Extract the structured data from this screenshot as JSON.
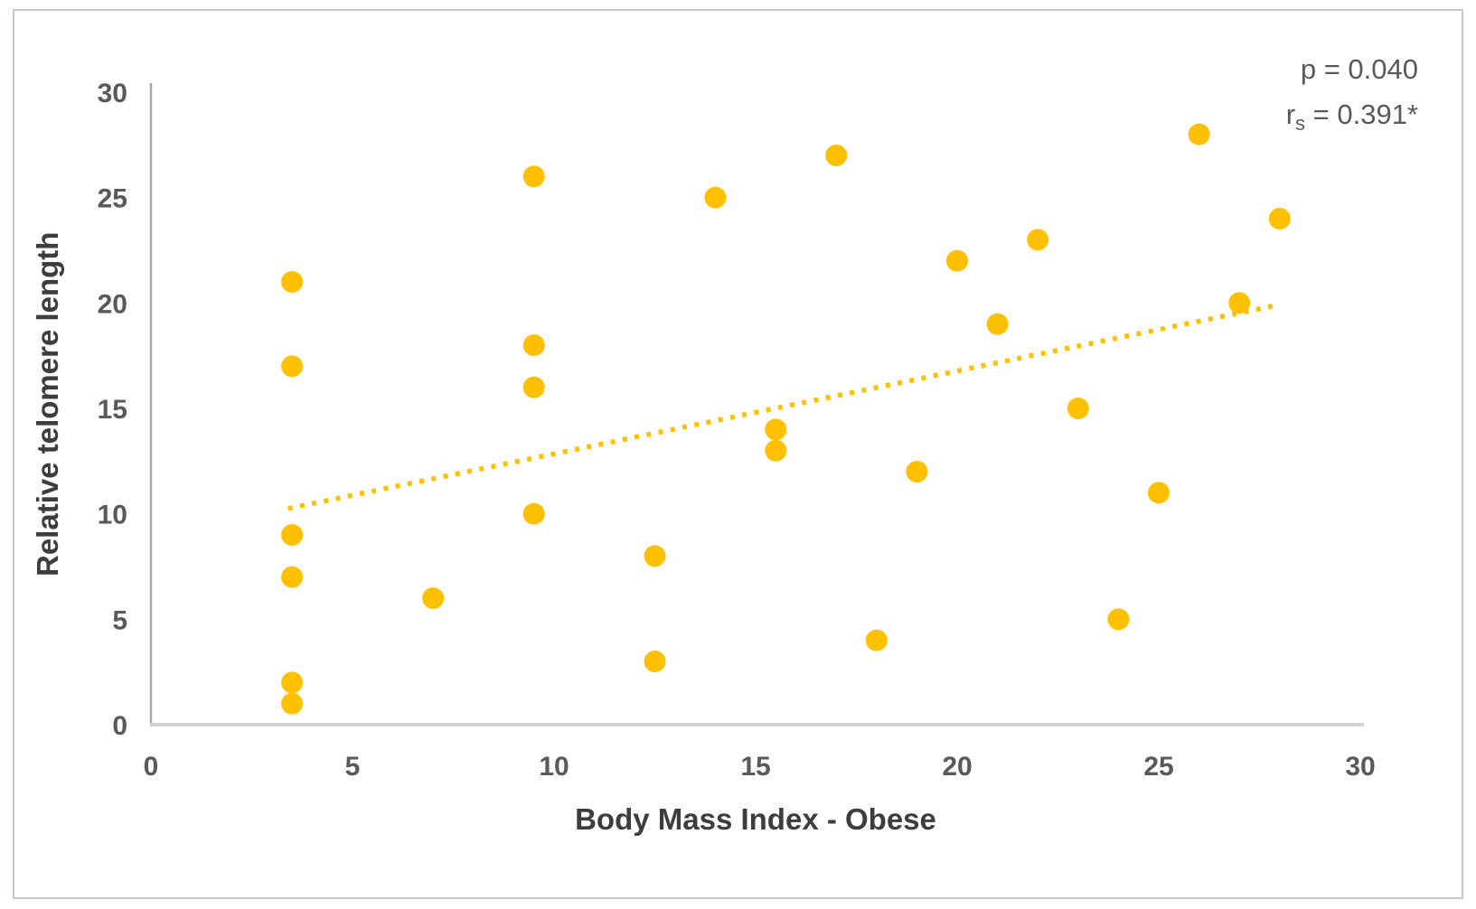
{
  "figure": {
    "background": "#ffffff",
    "border_color": "#c9c9c9"
  },
  "chart_data": {
    "type": "scatter",
    "title": "",
    "xlabel": "Body Mass Index - Obese",
    "ylabel": "Relative telomere length",
    "xlim": [
      0,
      30
    ],
    "ylim": [
      0,
      30
    ],
    "x_ticks": [
      0,
      5,
      10,
      15,
      20,
      25,
      30
    ],
    "y_ticks": [
      0,
      5,
      10,
      15,
      20,
      25,
      30
    ],
    "grid": false,
    "legend": "none",
    "marker_color": "#FFC000",
    "marker_radius_px": 12,
    "x_axis_line_color": "#d2d2d2",
    "y_axis_line_color": "#a8a8a8",
    "tick_label_color": "#595959",
    "axis_title_color": "#3d3d3d",
    "points": [
      [
        3.5,
        21
      ],
      [
        3.5,
        17
      ],
      [
        3.5,
        9
      ],
      [
        3.5,
        7
      ],
      [
        3.5,
        2
      ],
      [
        3.5,
        1
      ],
      [
        7,
        6
      ],
      [
        9.5,
        26
      ],
      [
        9.5,
        18
      ],
      [
        9.5,
        16
      ],
      [
        9.5,
        10
      ],
      [
        12.5,
        8
      ],
      [
        12.5,
        3
      ],
      [
        14,
        25
      ],
      [
        15.5,
        14
      ],
      [
        15.5,
        13
      ],
      [
        17,
        27
      ],
      [
        18,
        4
      ],
      [
        19,
        12
      ],
      [
        20,
        22
      ],
      [
        21,
        19
      ],
      [
        22,
        23
      ],
      [
        23,
        15
      ],
      [
        24,
        5
      ],
      [
        25,
        11
      ],
      [
        26,
        28
      ],
      [
        27,
        20
      ],
      [
        28,
        24
      ]
    ],
    "trendline": {
      "style": "dotted",
      "color": "#FFC000",
      "x1": 3.4,
      "y1": 10.25,
      "x2": 27.95,
      "y2": 19.9
    },
    "annotation": {
      "p_line": "p = 0.040",
      "r_prefix": "r",
      "r_sub": "s",
      "r_suffix": " = 0.391*",
      "color": "#595959"
    }
  }
}
